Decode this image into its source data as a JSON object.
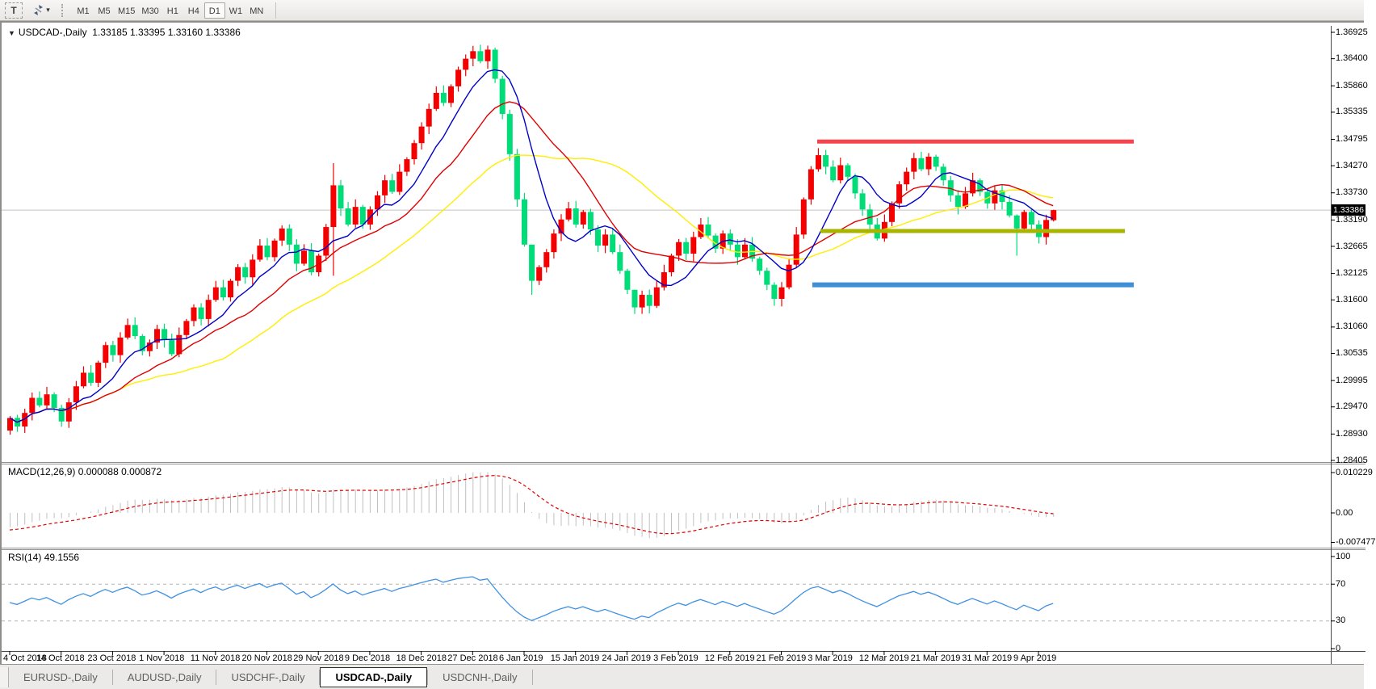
{
  "toolbar": {
    "text_tool_label": "T",
    "timeframes": [
      {
        "label": "M1"
      },
      {
        "label": "M5"
      },
      {
        "label": "M15"
      },
      {
        "label": "M30"
      },
      {
        "label": "H1"
      },
      {
        "label": "H4"
      },
      {
        "label": "D1",
        "active": true
      },
      {
        "label": "W1"
      },
      {
        "label": "MN"
      }
    ]
  },
  "window": {
    "title_symbol": "USDCAD-,Daily",
    "title_ohlc": "1.33185 1.33395 1.33160 1.33386"
  },
  "tabs": [
    {
      "label": "EURUSD-,Daily"
    },
    {
      "label": "AUDUSD-,Daily"
    },
    {
      "label": "USDCHF-,Daily"
    },
    {
      "label": "USDCAD-,Daily",
      "active": true
    },
    {
      "label": "USDCNH-,Daily"
    }
  ],
  "chart_data": [
    {
      "type": "candlestick",
      "title": "USDCAD-,Daily",
      "last_ohlc": {
        "open": 1.33185,
        "high": 1.33395,
        "low": 1.3316,
        "close": 1.33386
      },
      "current_price": "1.33386",
      "up_color": "#f40000",
      "down_color": "#00dc78",
      "closes": [
        1.2925,
        1.2908,
        1.2935,
        1.2965,
        1.295,
        1.2972,
        1.2945,
        1.2918,
        1.2956,
        1.2988,
        1.3015,
        1.2995,
        1.3035,
        1.307,
        1.305,
        1.3085,
        1.311,
        1.3088,
        1.3058,
        1.3075,
        1.3102,
        1.308,
        1.3052,
        1.309,
        1.3118,
        1.3145,
        1.3122,
        1.316,
        1.3185,
        1.3165,
        1.3198,
        1.3225,
        1.3205,
        1.324,
        1.3268,
        1.3245,
        1.3278,
        1.3302,
        1.327,
        1.3232,
        1.3258,
        1.3215,
        1.3248,
        1.3305,
        1.3388,
        1.3342,
        1.331,
        1.3345,
        1.331,
        1.334,
        1.3368,
        1.3398,
        1.3375,
        1.3415,
        1.344,
        1.3472,
        1.3505,
        1.354,
        1.3572,
        1.3552,
        1.3585,
        1.3618,
        1.364,
        1.3655,
        1.3635,
        1.3658,
        1.36,
        1.353,
        1.345,
        1.336,
        1.327,
        1.3198,
        1.3225,
        1.3255,
        1.3292,
        1.332,
        1.3342,
        1.331,
        1.3335,
        1.33,
        1.3268,
        1.329,
        1.3255,
        1.3218,
        1.318,
        1.3145,
        1.317,
        1.3148,
        1.3185,
        1.3215,
        1.3248,
        1.3275,
        1.3252,
        1.3285,
        1.331,
        1.3288,
        1.3262,
        1.3292,
        1.327,
        1.3245,
        1.327,
        1.3242,
        1.3218,
        1.319,
        1.3162,
        1.3185,
        1.323,
        1.329,
        1.336,
        1.342,
        1.3448,
        1.3425,
        1.3398,
        1.3428,
        1.3405,
        1.3372,
        1.334,
        1.331,
        1.3282,
        1.3315,
        1.3352,
        1.339,
        1.3415,
        1.3442,
        1.342,
        1.3445,
        1.3425,
        1.3398,
        1.3368,
        1.3345,
        1.3372,
        1.3398,
        1.3375,
        1.3352,
        1.3378,
        1.3355,
        1.3328,
        1.3302,
        1.3335,
        1.331,
        1.3285,
        1.3319,
        1.33386
      ],
      "wick_overrides": {
        "44": [
          1.3432,
          1.3208
        ],
        "65": [
          1.3666,
          1.362
        ],
        "71": [
          1.323,
          1.317
        ],
        "85": [
          1.318,
          1.3132
        ],
        "104": [
          1.3195,
          1.3148
        ],
        "110": [
          1.3462,
          1.3415
        ],
        "125": [
          1.3452,
          1.3408
        ],
        "137": [
          1.333,
          1.3248
        ],
        "142": [
          1.33395,
          1.3316
        ]
      },
      "open_overrides": {
        "142": 1.33185
      },
      "moving_averages": [
        {
          "period": 30,
          "color": "#ffee00",
          "name": "ma-slow-yellow"
        },
        {
          "period": 16,
          "color": "#e00000",
          "name": "ma-medium-red"
        },
        {
          "period": 8,
          "color": "#0000c8",
          "name": "ma-fast-blue"
        }
      ],
      "hlines": [
        {
          "name": "resistance-line",
          "price": 1.3475,
          "x1": 1010,
          "x2": 1402,
          "color": "#f8434c",
          "width": 5
        },
        {
          "name": "support-line-olive",
          "price": 1.3297,
          "x1": 1014,
          "x2": 1391,
          "color": "#a9b400",
          "width": 5
        },
        {
          "name": "support-line-blue",
          "price": 1.319,
          "x1": 1004,
          "x2": 1402,
          "color": "#3f8ed8",
          "width": 6
        }
      ],
      "y_ticks": [
        "1.36925",
        "1.36400",
        "1.35860",
        "1.35335",
        "1.34795",
        "1.34270",
        "1.33730",
        "1.33190",
        "1.32665",
        "1.32125",
        "1.31600",
        "1.31060",
        "1.30535",
        "1.29995",
        "1.29470",
        "1.28930",
        "1.28405"
      ],
      "x_labels": [
        "4 Oct 2018",
        "14 Oct 2018",
        "23 Oct 2018",
        "1 Nov 2018",
        "11 Nov 2018",
        "20 Nov 2018",
        "29 Nov 2018",
        "9 Dec 2018",
        "18 Dec 2018",
        "27 Dec 2018",
        "6 Jan 2019",
        "15 Jan 2019",
        "24 Jan 2019",
        "3 Feb 2019",
        "12 Feb 2019",
        "21 Feb 2019",
        "3 Mar 2019",
        "12 Mar 2019",
        "21 Mar 2019",
        "31 Mar 2019",
        "9 Apr 2019"
      ]
    },
    {
      "type": "macd",
      "label": "MACD(12,26,9)",
      "values": "0.000088 0.000872",
      "params": [
        12,
        26,
        9
      ],
      "y_ticks": [
        "0.010229",
        "0.00",
        "-0.007477"
      ],
      "histogram_color": "#c0c0c0",
      "signal_color": "#e00000"
    },
    {
      "type": "rsi",
      "label": "RSI(14)",
      "value": "49.1556",
      "period": 14,
      "levels": [
        70,
        30
      ],
      "y_ticks": [
        "100",
        "70",
        "30",
        "0"
      ],
      "line_color": "#4191e2",
      "level_color": "#b5b5b5"
    }
  ]
}
